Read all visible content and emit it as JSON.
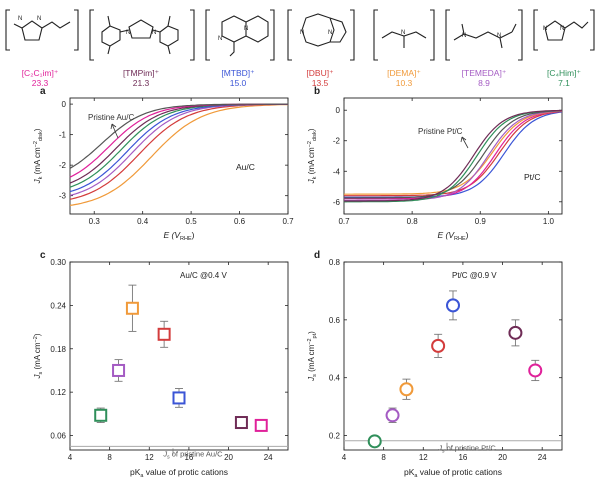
{
  "cations": [
    {
      "label": "[C₂C₁im]⁺",
      "pka": "23.3",
      "color": "#e0219a"
    },
    {
      "label": "[TMPim]⁺",
      "pka": "21.3",
      "color": "#6f2c56"
    },
    {
      "label": "[MTBD]⁺",
      "pka": "15.0",
      "color": "#3b55d6"
    },
    {
      "label": "[DBU]⁺",
      "pka": "13.5",
      "color": "#d33c3c"
    },
    {
      "label": "[DEMA]⁺",
      "pka": "10.3",
      "color": "#f09a3a"
    },
    {
      "label": "[TEMEDA]⁺",
      "pka": "8.9",
      "color": "#a45bc3"
    },
    {
      "label": "[C₄Him]⁺",
      "pka": "7.1",
      "color": "#2f8f5a"
    }
  ],
  "panels": {
    "a": {
      "letter": "a",
      "annotation": "Pristine Au/C",
      "catalyst": "Au/C",
      "xlabel_main": "E (V",
      "xlabel_sub": "RHE",
      "xlabel_end": ")",
      "ylabel_main": "J",
      "ylabel_sub": "k",
      "ylabel_unit": " (mA cm",
      "ylabel_sup": "−2",
      "ylabel_sub2": "disk",
      "ylabel_end": ")"
    },
    "b": {
      "letter": "b",
      "annotation": "Pristine Pt/C",
      "catalyst": "Pt/C",
      "xlabel_main": "E (V",
      "xlabel_sub": "RHE",
      "xlabel_end": ")",
      "ylabel_main": "J",
      "ylabel_sub": "k",
      "ylabel_unit": " (mA cm",
      "ylabel_sup": "−2",
      "ylabel_sub2": "disk",
      "ylabel_end": ")"
    },
    "c": {
      "letter": "c",
      "condition": "Au/C @0.4 V",
      "baseline_label": "J",
      "baseline_label_sub": "s",
      "baseline_label_rest": " of pristine Au/C",
      "xlabel_main": "pK",
      "xlabel_sub": "a",
      "xlabel_rest": " value of protic cations",
      "ylabel_main": "J",
      "ylabel_sub": "s",
      "ylabel_unit": " (mA cm",
      "ylabel_sup": "−2",
      "ylabel_end": ")"
    },
    "d": {
      "letter": "d",
      "condition": "Pt/C @0.9 V",
      "baseline_label": "J",
      "baseline_label_sub": "s",
      "baseline_label_rest": " of pristine Pt/C",
      "xlabel_main": "pK",
      "xlabel_sub": "a",
      "xlabel_rest": " value of protic cations",
      "ylabel_main": "J",
      "ylabel_sub": "s",
      "ylabel_unit": " (mA cm",
      "ylabel_sup": "−2",
      "ylabel_sub2": "pt",
      "ylabel_end": ")"
    }
  },
  "chart_data": [
    {
      "id": "a",
      "type": "line",
      "xlim": [
        0.25,
        0.7
      ],
      "ylim": [
        -3.6,
        0.2
      ],
      "xticks": [
        "0.3",
        "0.4",
        "0.5",
        "0.6",
        "0.7"
      ],
      "xtick_values": [
        0.3,
        0.4,
        0.5,
        0.6,
        0.7
      ],
      "yticks": [
        "-3",
        "-2",
        "-1",
        "0"
      ],
      "ytick_values": [
        -3,
        -2,
        -1,
        0
      ],
      "series": [
        {
          "color": "#f09a3a",
          "x0": 0.418,
          "w": 0.052,
          "ymin": -3.45
        },
        {
          "color": "#d33c3c",
          "x0": 0.392,
          "w": 0.05,
          "ymin": -3.3
        },
        {
          "color": "#a45bc3",
          "x0": 0.378,
          "w": 0.048,
          "ymin": -3.2
        },
        {
          "color": "#3b55d6",
          "x0": 0.368,
          "w": 0.047,
          "ymin": -3.1
        },
        {
          "color": "#2f8f5a",
          "x0": 0.355,
          "w": 0.046,
          "ymin": -3.0
        },
        {
          "color": "#6f2c56",
          "x0": 0.345,
          "w": 0.045,
          "ymin": -2.9
        },
        {
          "color": "#e0219a",
          "x0": 0.33,
          "w": 0.045,
          "ymin": -2.8
        },
        {
          "color": "#555555",
          "x0": 0.315,
          "w": 0.045,
          "ymin": -2.6
        }
      ]
    },
    {
      "id": "b",
      "type": "line",
      "xlim": [
        0.7,
        1.02
      ],
      "ylim": [
        -6.8,
        0.8
      ],
      "xticks": [
        "0.7",
        "0.8",
        "0.9",
        "1.0"
      ],
      "xtick_values": [
        0.7,
        0.8,
        0.9,
        1.0
      ],
      "yticks": [
        "-6",
        "-4",
        "-2",
        "0"
      ],
      "ytick_values": [
        -6,
        -4,
        -2,
        0
      ],
      "series": [
        {
          "color": "#3b55d6",
          "x0": 0.935,
          "w": 0.022,
          "ymin": -5.7
        },
        {
          "color": "#d33c3c",
          "x0": 0.928,
          "w": 0.022,
          "ymin": -5.6
        },
        {
          "color": "#e0219a",
          "x0": 0.922,
          "w": 0.022,
          "ymin": -5.8
        },
        {
          "color": "#f09a3a",
          "x0": 0.918,
          "w": 0.022,
          "ymin": -5.5
        },
        {
          "color": "#a45bc3",
          "x0": 0.912,
          "w": 0.022,
          "ymin": -5.9
        },
        {
          "color": "#555555",
          "x0": 0.905,
          "w": 0.022,
          "ymin": -5.75
        },
        {
          "color": "#2f8f5a",
          "x0": 0.895,
          "w": 0.022,
          "ymin": -6.0
        },
        {
          "color": "#6f2c56",
          "x0": 0.89,
          "w": 0.022,
          "ymin": -5.95
        }
      ]
    },
    {
      "id": "c",
      "type": "scatter",
      "marker": "square",
      "xlim": [
        4,
        26
      ],
      "ylim": [
        0.04,
        0.3
      ],
      "xticks": [
        "4",
        "8",
        "12",
        "16",
        "20",
        "24"
      ],
      "xtick_values": [
        4,
        8,
        12,
        16,
        20,
        24
      ],
      "yticks": [
        "0.06",
        "0.12",
        "0.18",
        "0.24",
        "0.30"
      ],
      "ytick_values": [
        0.06,
        0.12,
        0.18,
        0.24,
        0.3
      ],
      "baseline": 0.045,
      "points": [
        {
          "x": 7.1,
          "y": 0.088,
          "err": 0.01,
          "color": "#2f8f5a"
        },
        {
          "x": 8.9,
          "y": 0.15,
          "err": 0.015,
          "color": "#a45bc3"
        },
        {
          "x": 10.3,
          "y": 0.236,
          "err": 0.032,
          "color": "#f09a3a"
        },
        {
          "x": 13.5,
          "y": 0.2,
          "err": 0.018,
          "color": "#d33c3c"
        },
        {
          "x": 15.0,
          "y": 0.112,
          "err": 0.013,
          "color": "#3b55d6"
        },
        {
          "x": 21.3,
          "y": 0.078,
          "err": 0.004,
          "color": "#6f2c56"
        },
        {
          "x": 23.3,
          "y": 0.074,
          "err": 0.003,
          "color": "#e0219a"
        }
      ]
    },
    {
      "id": "d",
      "type": "scatter",
      "marker": "circle",
      "xlim": [
        4,
        26
      ],
      "ylim": [
        0.15,
        0.8
      ],
      "xticks": [
        "4",
        "8",
        "12",
        "16",
        "20",
        "24"
      ],
      "xtick_values": [
        4,
        8,
        12,
        16,
        20,
        24
      ],
      "yticks": [
        "0.2",
        "0.4",
        "0.6",
        "0.8"
      ],
      "ytick_values": [
        0.2,
        0.4,
        0.6,
        0.8
      ],
      "baseline": 0.182,
      "points": [
        {
          "x": 7.1,
          "y": 0.18,
          "err": 0.01,
          "color": "#2f8f5a"
        },
        {
          "x": 8.9,
          "y": 0.27,
          "err": 0.025,
          "color": "#a45bc3"
        },
        {
          "x": 10.3,
          "y": 0.36,
          "err": 0.035,
          "color": "#f09a3a"
        },
        {
          "x": 13.5,
          "y": 0.51,
          "err": 0.04,
          "color": "#d33c3c"
        },
        {
          "x": 15.0,
          "y": 0.65,
          "err": 0.05,
          "color": "#3b55d6"
        },
        {
          "x": 21.3,
          "y": 0.555,
          "err": 0.045,
          "color": "#6f2c56"
        },
        {
          "x": 23.3,
          "y": 0.425,
          "err": 0.035,
          "color": "#e0219a"
        }
      ]
    }
  ]
}
